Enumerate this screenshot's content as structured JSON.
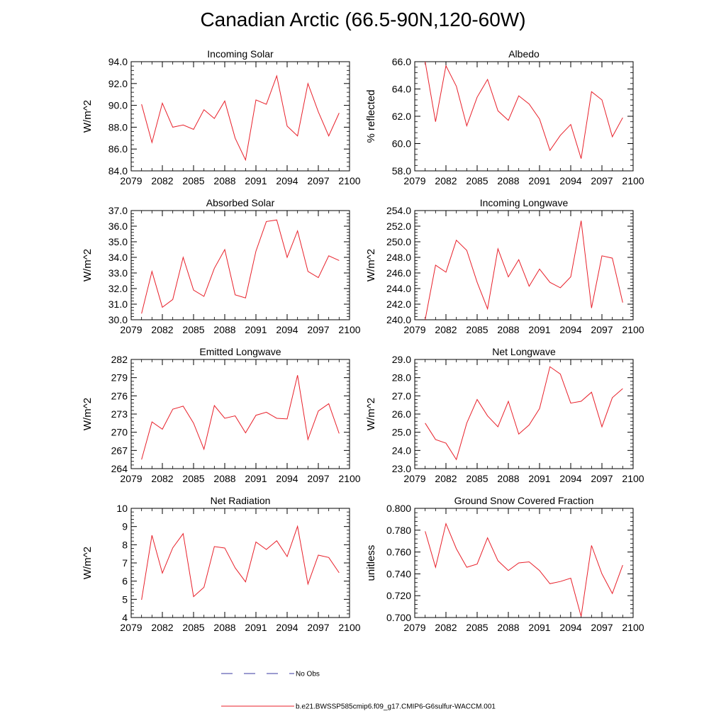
{
  "title": "Canadian Arctic (66.5-90N,120-60W)",
  "legend": {
    "obs_label": "No Obs",
    "model_label": "b.e21.BWSSP585cmip6.f09_g17.CMIP6-G6sulfur-WACCM.001",
    "obs_color": "#3a3aa0",
    "model_color": "#e8202a"
  },
  "chart_data": [
    {
      "type": "line",
      "title": "Incoming Solar",
      "ylabel": "W/m^2",
      "xlim": [
        2079,
        2100
      ],
      "xticks": [
        2079,
        2082,
        2085,
        2088,
        2091,
        2094,
        2097,
        2100
      ],
      "ylim": [
        84,
        94
      ],
      "yticks": [
        "84.0",
        "86.0",
        "88.0",
        "90.0",
        "92.0",
        "94.0"
      ],
      "x": [
        2080,
        2081,
        2082,
        2083,
        2084,
        2085,
        2086,
        2087,
        2088,
        2089,
        2090,
        2091,
        2092,
        2093,
        2094,
        2095,
        2096,
        2097,
        2098,
        2099
      ],
      "series": [
        {
          "values": [
            90.1,
            86.6,
            90.2,
            88.0,
            88.2,
            87.8,
            89.6,
            88.8,
            90.4,
            87.0,
            85.0,
            90.5,
            90.1,
            92.7,
            88.1,
            87.2,
            92.0,
            89.4,
            87.2,
            89.3
          ]
        }
      ]
    },
    {
      "type": "line",
      "title": "Albedo",
      "ylabel": "% reflected",
      "xlim": [
        2079,
        2100
      ],
      "xticks": [
        2079,
        2082,
        2085,
        2088,
        2091,
        2094,
        2097,
        2100
      ],
      "ylim": [
        58,
        66
      ],
      "yticks": [
        "58.0",
        "60.0",
        "62.0",
        "64.0",
        "66.0"
      ],
      "x": [
        2080,
        2081,
        2082,
        2083,
        2084,
        2085,
        2086,
        2087,
        2088,
        2089,
        2090,
        2091,
        2092,
        2093,
        2094,
        2095,
        2096,
        2097,
        2098,
        2099
      ],
      "series": [
        {
          "values": [
            66.0,
            61.6,
            65.7,
            64.2,
            61.3,
            63.4,
            64.7,
            62.4,
            61.7,
            63.5,
            62.9,
            61.8,
            59.5,
            60.6,
            61.4,
            58.9,
            63.8,
            63.2,
            60.5,
            61.9
          ]
        }
      ]
    },
    {
      "type": "line",
      "title": "Absorbed Solar",
      "ylabel": "W/m^2",
      "xlim": [
        2079,
        2100
      ],
      "xticks": [
        2079,
        2082,
        2085,
        2088,
        2091,
        2094,
        2097,
        2100
      ],
      "ylim": [
        30,
        37
      ],
      "yticks": [
        "30.0",
        "31.0",
        "32.0",
        "33.0",
        "34.0",
        "35.0",
        "36.0",
        "37.0"
      ],
      "x": [
        2080,
        2081,
        2082,
        2083,
        2084,
        2085,
        2086,
        2087,
        2088,
        2089,
        2090,
        2091,
        2092,
        2093,
        2094,
        2095,
        2096,
        2097,
        2098,
        2099
      ],
      "series": [
        {
          "values": [
            30.4,
            33.1,
            30.8,
            31.3,
            34.0,
            31.9,
            31.5,
            33.3,
            34.5,
            31.6,
            31.4,
            34.4,
            36.3,
            36.4,
            34.0,
            35.7,
            33.1,
            32.7,
            34.1,
            33.8
          ]
        }
      ]
    },
    {
      "type": "line",
      "title": "Incoming Longwave",
      "ylabel": "W/m^2",
      "xlim": [
        2079,
        2100
      ],
      "xticks": [
        2079,
        2082,
        2085,
        2088,
        2091,
        2094,
        2097,
        2100
      ],
      "ylim": [
        240,
        254
      ],
      "yticks": [
        "240.0",
        "242.0",
        "244.0",
        "246.0",
        "248.0",
        "250.0",
        "252.0",
        "254.0"
      ],
      "x": [
        2080,
        2081,
        2082,
        2083,
        2084,
        2085,
        2086,
        2087,
        2088,
        2089,
        2090,
        2091,
        2092,
        2093,
        2094,
        2095,
        2096,
        2097,
        2098,
        2099
      ],
      "series": [
        {
          "values": [
            240.0,
            247.0,
            246.1,
            250.2,
            248.9,
            244.8,
            241.4,
            249.1,
            245.5,
            247.7,
            244.3,
            246.5,
            244.8,
            244.1,
            245.5,
            252.7,
            241.5,
            248.2,
            247.9,
            242.2
          ]
        }
      ]
    },
    {
      "type": "line",
      "title": "Emitted Longwave",
      "ylabel": "W/m^2",
      "xlim": [
        2079,
        2100
      ],
      "xticks": [
        2079,
        2082,
        2085,
        2088,
        2091,
        2094,
        2097,
        2100
      ],
      "ylim": [
        264,
        282
      ],
      "yticks": [
        "264",
        "267",
        "270",
        "273",
        "276",
        "279",
        "282"
      ],
      "x": [
        2080,
        2081,
        2082,
        2083,
        2084,
        2085,
        2086,
        2087,
        2088,
        2089,
        2090,
        2091,
        2092,
        2093,
        2094,
        2095,
        2096,
        2097,
        2098,
        2099
      ],
      "series": [
        {
          "values": [
            265.5,
            271.7,
            270.5,
            273.8,
            274.3,
            271.5,
            267.2,
            274.4,
            272.3,
            272.7,
            269.9,
            272.8,
            273.3,
            272.3,
            272.2,
            279.4,
            268.8,
            273.5,
            274.7,
            269.8
          ]
        }
      ]
    },
    {
      "type": "line",
      "title": "Net Longwave",
      "ylabel": "W/m^2",
      "xlim": [
        2079,
        2100
      ],
      "xticks": [
        2079,
        2082,
        2085,
        2088,
        2091,
        2094,
        2097,
        2100
      ],
      "ylim": [
        23,
        29
      ],
      "yticks": [
        "23.0",
        "24.0",
        "25.0",
        "26.0",
        "27.0",
        "28.0",
        "29.0"
      ],
      "x": [
        2080,
        2081,
        2082,
        2083,
        2084,
        2085,
        2086,
        2087,
        2088,
        2089,
        2090,
        2091,
        2092,
        2093,
        2094,
        2095,
        2096,
        2097,
        2098,
        2099
      ],
      "series": [
        {
          "values": [
            25.5,
            24.6,
            24.4,
            23.5,
            25.5,
            26.8,
            25.9,
            25.3,
            26.7,
            24.9,
            25.4,
            26.3,
            28.6,
            28.2,
            26.6,
            26.7,
            27.2,
            25.3,
            26.9,
            27.4
          ]
        }
      ]
    },
    {
      "type": "line",
      "title": "Net Radiation",
      "ylabel": "W/m^2",
      "xlim": [
        2079,
        2100
      ],
      "xticks": [
        2079,
        2082,
        2085,
        2088,
        2091,
        2094,
        2097,
        2100
      ],
      "ylim": [
        4,
        10
      ],
      "yticks": [
        "4",
        "5",
        "6",
        "7",
        "8",
        "9",
        "10"
      ],
      "x": [
        2080,
        2081,
        2082,
        2083,
        2084,
        2085,
        2086,
        2087,
        2088,
        2089,
        2090,
        2091,
        2092,
        2093,
        2094,
        2095,
        2096,
        2097,
        2098,
        2099
      ],
      "series": [
        {
          "values": [
            4.97,
            8.52,
            6.44,
            7.83,
            8.61,
            5.15,
            5.66,
            7.9,
            7.82,
            6.73,
            5.96,
            8.15,
            7.74,
            8.22,
            7.35,
            9.01,
            5.84,
            7.43,
            7.3,
            6.46
          ]
        }
      ]
    },
    {
      "type": "line",
      "title": "Ground Snow Covered Fraction",
      "ylabel": "unitless",
      "xlim": [
        2079,
        2100
      ],
      "xticks": [
        2079,
        2082,
        2085,
        2088,
        2091,
        2094,
        2097,
        2100
      ],
      "ylim": [
        0.7,
        0.8
      ],
      "yticks": [
        "0.700",
        "0.720",
        "0.740",
        "0.760",
        "0.780",
        "0.800"
      ],
      "x": [
        2080,
        2081,
        2082,
        2083,
        2084,
        2085,
        2086,
        2087,
        2088,
        2089,
        2090,
        2091,
        2092,
        2093,
        2094,
        2095,
        2096,
        2097,
        2098,
        2099
      ],
      "series": [
        {
          "values": [
            0.779,
            0.746,
            0.786,
            0.763,
            0.746,
            0.749,
            0.773,
            0.752,
            0.743,
            0.75,
            0.751,
            0.743,
            0.731,
            0.733,
            0.736,
            0.701,
            0.766,
            0.74,
            0.722,
            0.748
          ]
        }
      ]
    }
  ]
}
